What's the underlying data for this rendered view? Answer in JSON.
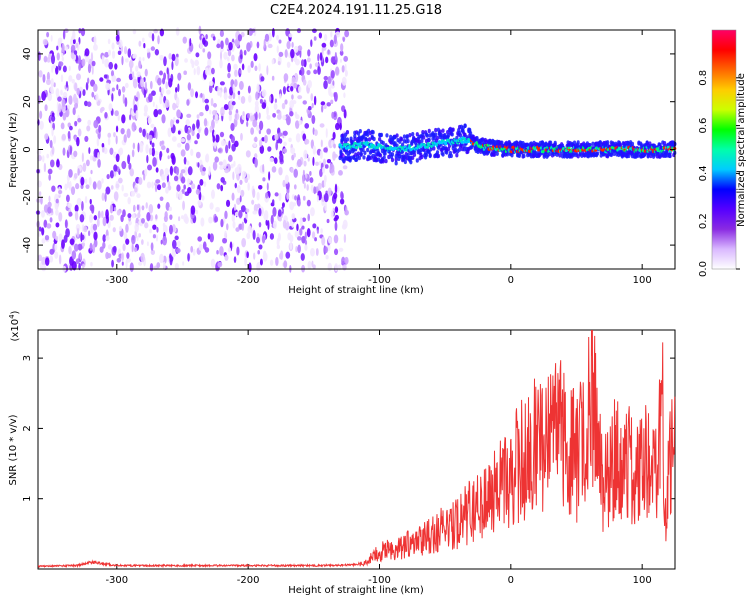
{
  "chart_data": [
    {
      "type": "heatmap",
      "title": "C2E4.2024.191.11.25.G18",
      "xlabel": "Height of straight line (km)",
      "ylabel": "Frequency (Hz)",
      "xlim": [
        -360,
        125
      ],
      "ylim": [
        -50,
        50
      ],
      "x_ticks": [
        -300,
        -200,
        -100,
        0,
        100
      ],
      "y_ticks": [
        -40,
        -20,
        0,
        20,
        40
      ],
      "colorbar": {
        "label": "Normalized spectral amplitude",
        "range": [
          0,
          1
        ],
        "ticks": [
          "0.0",
          "0.2",
          "0.4",
          "0.6",
          "0.8"
        ],
        "colors": [
          "#ffffff",
          "#d9b8ff",
          "#8a2be2",
          "#5500ff",
          "#0000ff",
          "#00ccff",
          "#00ffaa",
          "#00ff00",
          "#ccff00",
          "#ffcc00",
          "#ff6600",
          "#ff0000",
          "#ff0066"
        ]
      },
      "description_regions": {
        "noise_band_x": [
          -360,
          -125
        ],
        "signal_ridge": {
          "x": [
            -130,
            -110,
            -90,
            -70,
            -50,
            -35,
            -20,
            0,
            20,
            40,
            60,
            80,
            100,
            125
          ],
          "frequency": [
            1,
            2,
            0,
            1,
            3,
            4,
            1,
            0,
            0,
            0,
            0,
            0,
            0,
            0
          ]
        }
      }
    },
    {
      "type": "line",
      "xlabel": "Height of straight line (km)",
      "ylabel": "SNR (10 * v/v)",
      "y_scale_label": "(x10",
      "y_scale_exponent": "4",
      "y_scale_suffix": ")",
      "xlim": [
        -360,
        125
      ],
      "ylim": [
        0,
        3.4
      ],
      "x_ticks": [
        -300,
        -200,
        -100,
        0,
        100
      ],
      "y_ticks": [
        1,
        2,
        3
      ],
      "line_color": "#ee3333",
      "series": [
        {
          "x": [
            -360,
            -330,
            -320,
            -300,
            -250,
            -200,
            -150,
            -120,
            -110,
            -100,
            -90,
            -80,
            -70,
            -60,
            -50,
            -40,
            -30,
            -20,
            -10,
            0,
            10,
            20,
            30,
            40,
            45,
            50,
            55,
            60,
            65,
            70,
            75,
            80,
            85,
            90,
            95,
            100,
            105,
            110,
            113,
            115,
            118,
            120,
            125
          ],
          "y": [
            0.04,
            0.05,
            0.1,
            0.05,
            0.05,
            0.05,
            0.05,
            0.06,
            0.1,
            0.25,
            0.3,
            0.35,
            0.45,
            0.55,
            0.6,
            0.7,
            0.9,
            1.1,
            1.2,
            1.4,
            1.7,
            1.9,
            1.95,
            2.0,
            1.9,
            1.6,
            2.0,
            2.4,
            2.85,
            1.2,
            1.5,
            1.7,
            1.4,
            1.6,
            1.3,
            1.5,
            1.7,
            1.4,
            2.3,
            3.3,
            0.5,
            1.5,
            2.1
          ]
        }
      ]
    }
  ]
}
